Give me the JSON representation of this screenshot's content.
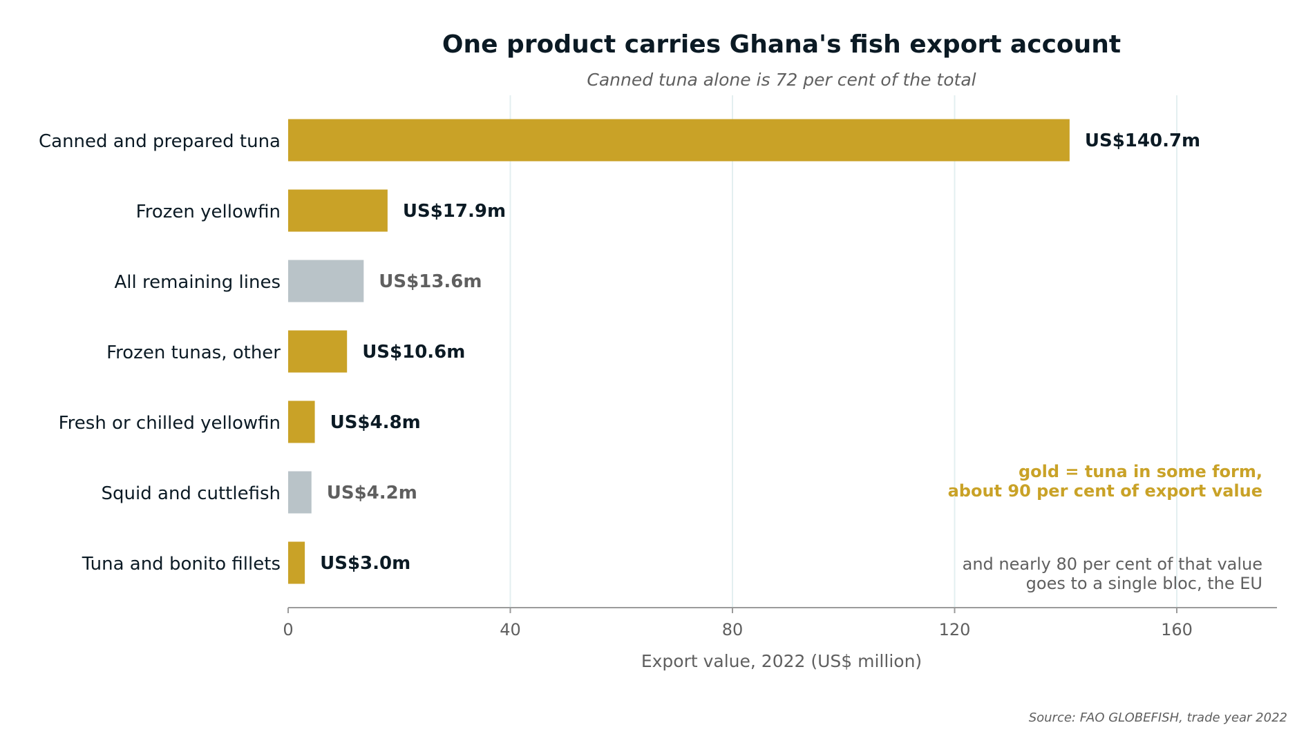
{
  "colors": {
    "tuna": "#c9a227",
    "other": "#b9c3c8",
    "dark_text": "#0b1a24",
    "muted_text": "#5f5f5f",
    "grid": "#e3eff0",
    "axis": "#9a9a9a"
  },
  "chart_data": {
    "type": "bar",
    "orientation": "horizontal",
    "title": "One product carries Ghana's fish export account",
    "subtitle": "Canned tuna alone is 72 per cent of the total",
    "xlabel": "Export value, 2022 (US$ million)",
    "ylabel": "",
    "xlim": [
      0,
      178
    ],
    "xticks": [
      0,
      40,
      80,
      120,
      160
    ],
    "grid": true,
    "categories": [
      "Canned and prepared tuna",
      "Frozen yellowfin",
      "All remaining lines",
      "Frozen tunas, other",
      "Fresh or chilled yellowfin",
      "Squid and cuttlefish",
      "Tuna and bonito fillets"
    ],
    "values": [
      140.7,
      17.9,
      13.6,
      10.6,
      4.8,
      4.2,
      3.0
    ],
    "data_labels": [
      "US$140.7m",
      "US$17.9m",
      "US$13.6m",
      "US$10.6m",
      "US$4.8m",
      "US$4.2m",
      "US$3.0m"
    ],
    "is_tuna": [
      true,
      true,
      false,
      true,
      true,
      false,
      true
    ],
    "annotations": {
      "highlight_line1": "gold = tuna in some form,",
      "highlight_line2": "about 90 per cent of export value",
      "note_line1": "and nearly 80 per cent of that value",
      "note_line2": "goes to a single bloc, the EU"
    },
    "source": "Source: FAO GLOBEFISH, trade year 2022"
  }
}
